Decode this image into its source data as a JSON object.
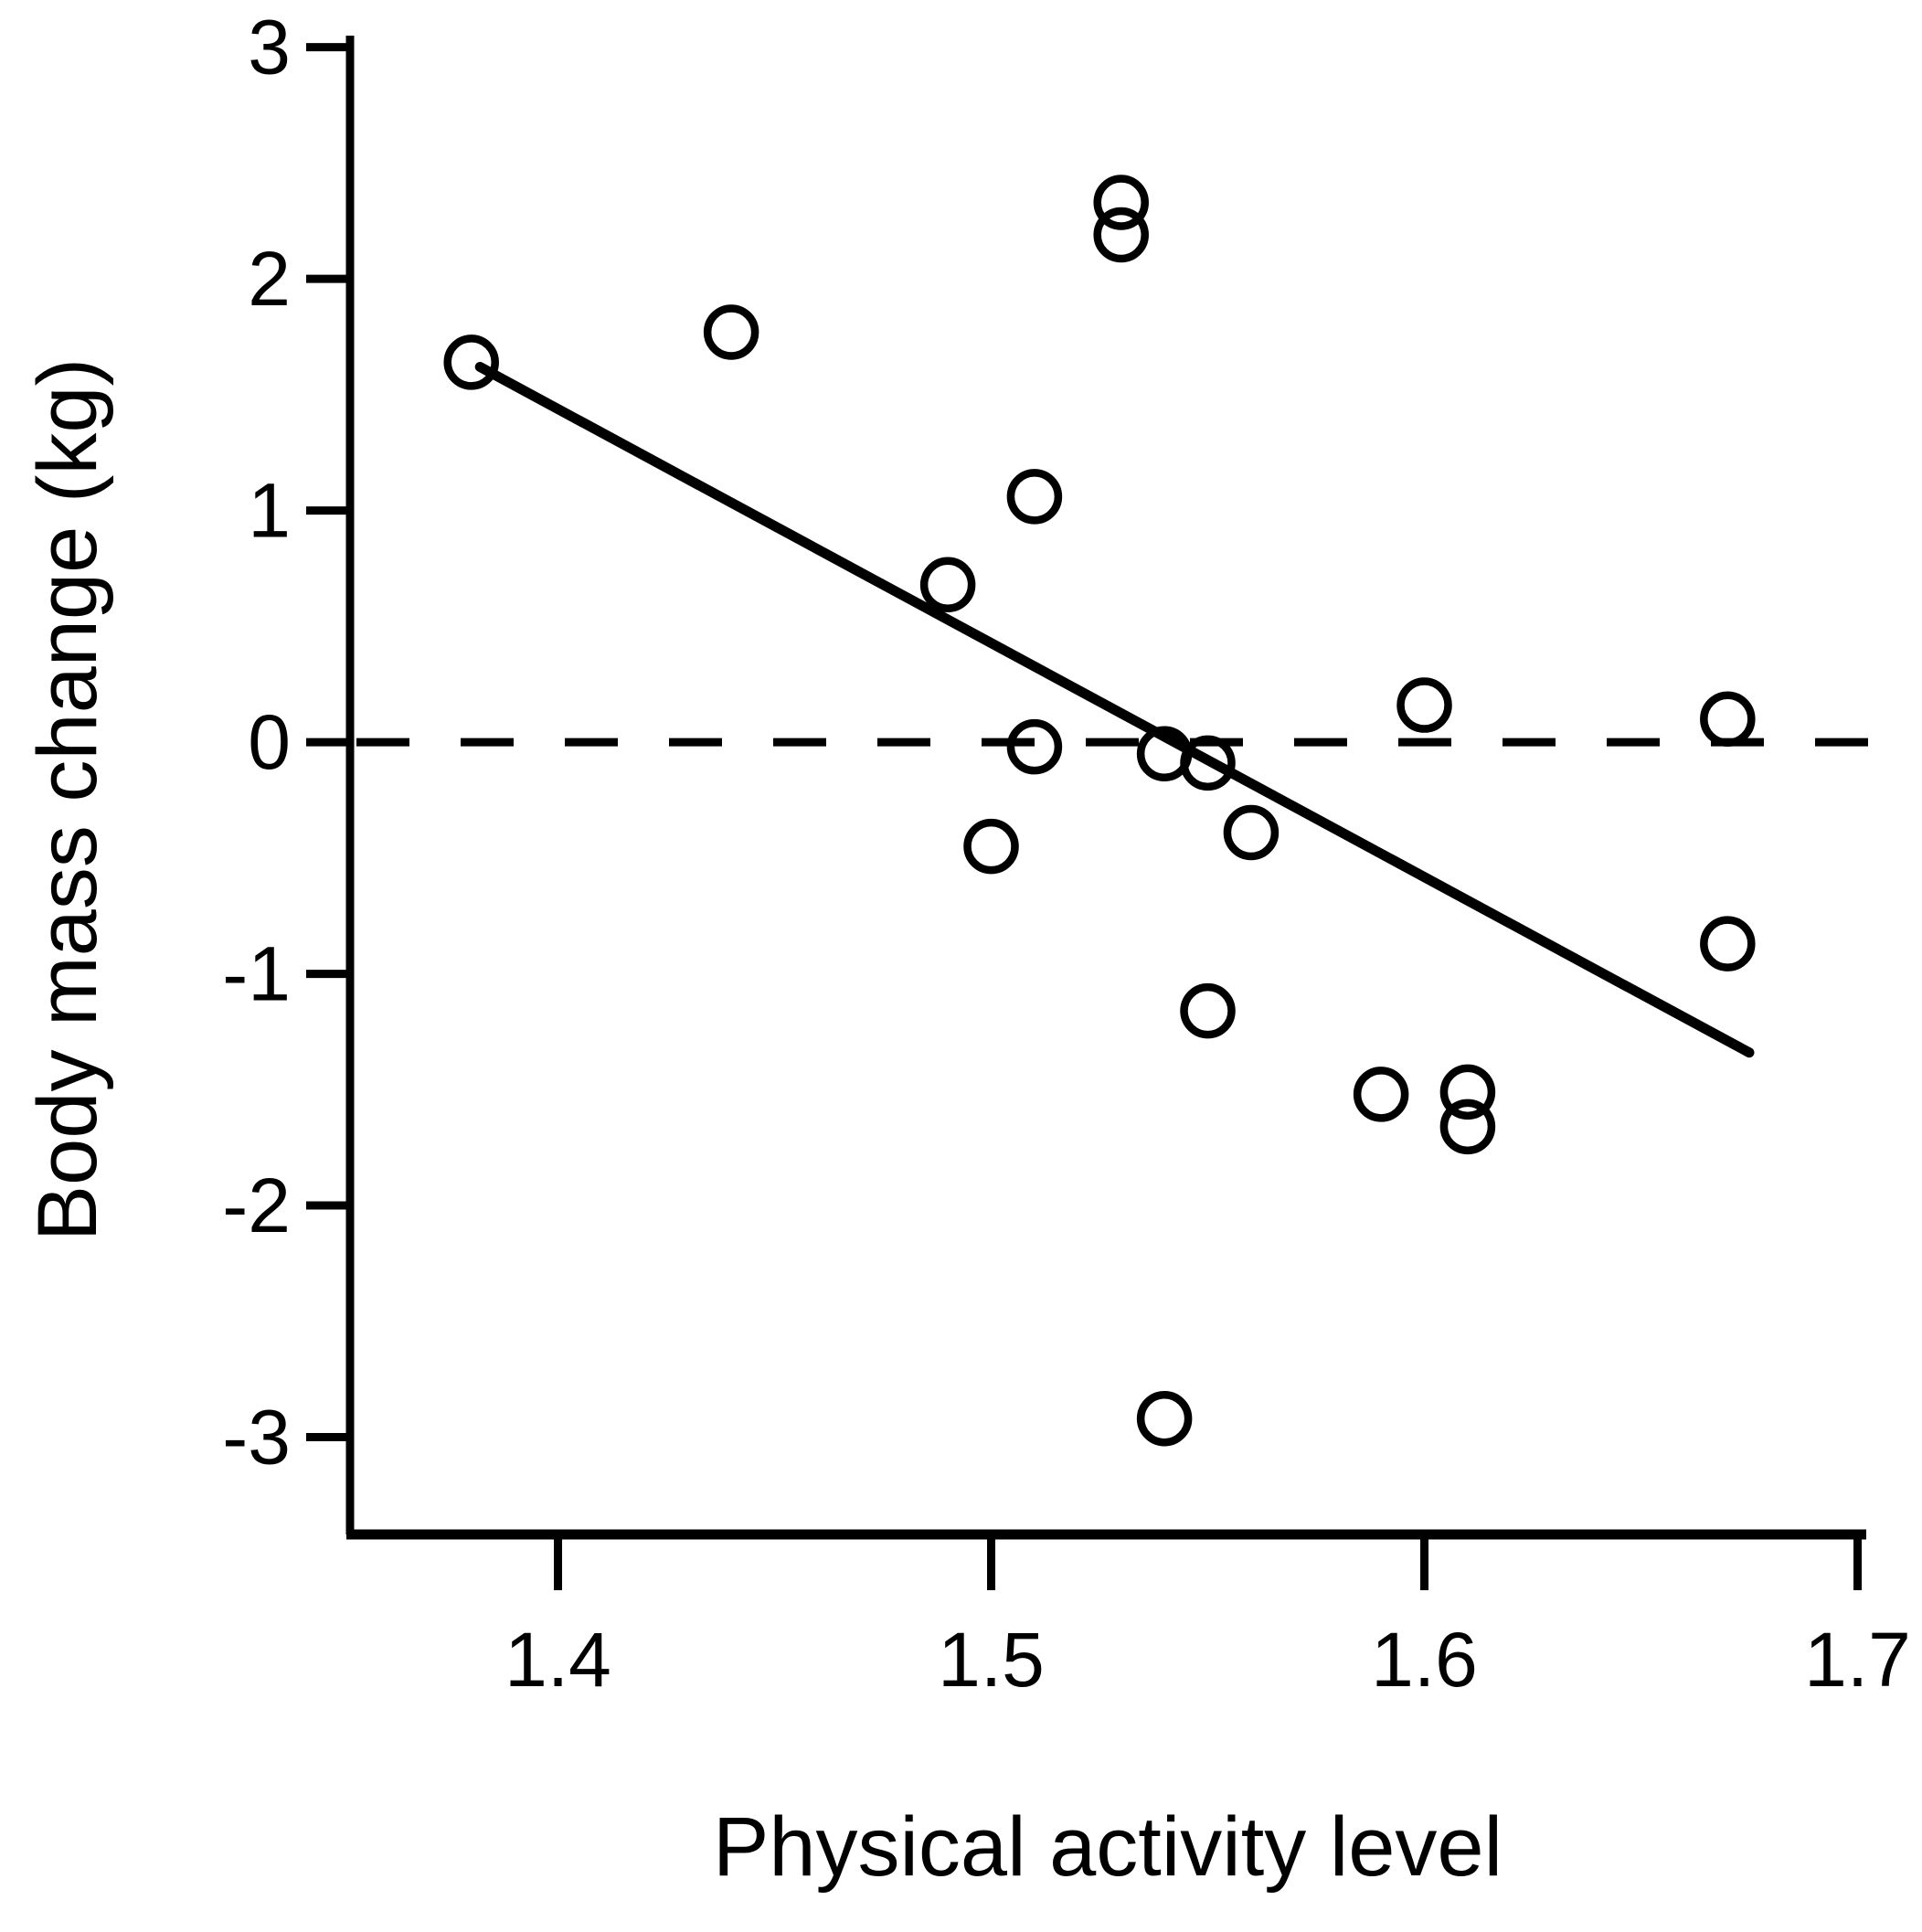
{
  "figure": {
    "background_color": "#ffffff",
    "ink_color": "#000000"
  },
  "chart_data": {
    "type": "scatter",
    "title": "",
    "xlabel": "Physical activity level",
    "ylabel": "Body mass change (kg)",
    "xlim": [
      1.352,
      1.702
    ],
    "ylim": [
      -3.42,
      3.05
    ],
    "x_ticks": [
      "1.4",
      "1.5",
      "1.6",
      "1.7"
    ],
    "x_tick_values": [
      1.4,
      1.5,
      1.6,
      1.7
    ],
    "y_ticks": [
      "3",
      "2",
      "1",
      "0",
      "-1",
      "-2",
      "-3"
    ],
    "y_tick_values": [
      3,
      2,
      1,
      0,
      -1,
      -2,
      -3
    ],
    "grid": false,
    "legend": "none",
    "marker_style": "open-circle",
    "points": [
      {
        "x": 1.38,
        "y": 1.64
      },
      {
        "x": 1.44,
        "y": 1.77
      },
      {
        "x": 1.49,
        "y": 0.68
      },
      {
        "x": 1.51,
        "y": 1.06
      },
      {
        "x": 1.5,
        "y": -0.45
      },
      {
        "x": 1.51,
        "y": -0.02
      },
      {
        "x": 1.53,
        "y": 2.33
      },
      {
        "x": 1.53,
        "y": 2.19
      },
      {
        "x": 1.54,
        "y": -0.05
      },
      {
        "x": 1.55,
        "y": -0.09
      },
      {
        "x": 1.56,
        "y": -0.39
      },
      {
        "x": 1.55,
        "y": -1.16
      },
      {
        "x": 1.54,
        "y": -2.92
      },
      {
        "x": 1.59,
        "y": -1.52
      },
      {
        "x": 1.61,
        "y": -1.51
      },
      {
        "x": 1.61,
        "y": -1.66
      },
      {
        "x": 1.6,
        "y": 0.16
      },
      {
        "x": 1.67,
        "y": 0.1
      },
      {
        "x": 1.67,
        "y": -0.87
      }
    ],
    "regression_line": {
      "x1": 1.382,
      "y1": 1.62,
      "x2": 1.675,
      "y2": -1.34
    },
    "zero_reference_line": {
      "y": 0,
      "style": "dashed"
    }
  }
}
